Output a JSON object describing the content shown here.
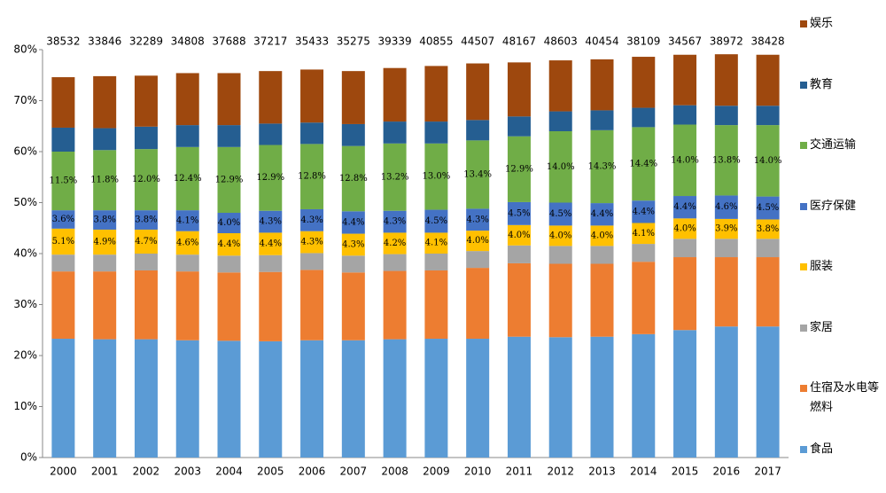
{
  "chart_data": {
    "type": "stacked_bar",
    "categories": [
      "2000",
      "2001",
      "2002",
      "2003",
      "2004",
      "2005",
      "2006",
      "2007",
      "2008",
      "2009",
      "2010",
      "2011",
      "2012",
      "2013",
      "2014",
      "2015",
      "2016",
      "2017"
    ],
    "annotations": [
      38532,
      33846,
      32289,
      34808,
      37688,
      37217,
      35433,
      35275,
      39339,
      40855,
      44507,
      48167,
      48603,
      40454,
      38109,
      34567,
      38972,
      38428
    ],
    "ylim": [
      0,
      80
    ],
    "yticks": [
      {
        "value": 0,
        "label": "0%"
      },
      {
        "value": 10,
        "label": "10%"
      },
      {
        "value": 20,
        "label": "20%"
      },
      {
        "value": 30,
        "label": "30%"
      },
      {
        "value": 40,
        "label": "40%"
      },
      {
        "value": 50,
        "label": "50%"
      },
      {
        "value": 60,
        "label": "60%"
      },
      {
        "value": 70,
        "label": "70%"
      },
      {
        "value": 80,
        "label": "80%"
      }
    ],
    "grid": false,
    "legend": "right",
    "series": [
      {
        "name": "食品",
        "color": "#5b9bd5",
        "values": [
          23.3,
          23.2,
          23.2,
          23.0,
          22.9,
          22.8,
          23.0,
          23.0,
          23.2,
          23.3,
          23.3,
          23.7,
          23.6,
          23.7,
          24.2,
          25.0,
          25.7,
          25.7
        ]
      },
      {
        "name": "住宿及水电等燃料",
        "color": "#ed7d31",
        "values": [
          13.2,
          13.3,
          13.5,
          13.5,
          13.4,
          13.6,
          13.8,
          13.3,
          13.4,
          13.4,
          13.9,
          14.4,
          14.4,
          14.3,
          14.2,
          14.3,
          13.6,
          13.6
        ]
      },
      {
        "name": "家居",
        "color": "#a5a5a5",
        "values": [
          3.3,
          3.3,
          3.3,
          3.3,
          3.3,
          3.3,
          3.3,
          3.3,
          3.3,
          3.3,
          3.3,
          3.5,
          3.5,
          3.5,
          3.5,
          3.6,
          3.6,
          3.6
        ]
      },
      {
        "name": "服装",
        "color": "#ffc000",
        "values": [
          5.1,
          4.9,
          4.7,
          4.6,
          4.4,
          4.4,
          4.3,
          4.3,
          4.2,
          4.1,
          4.0,
          4.0,
          4.0,
          4.0,
          4.1,
          4.0,
          3.9,
          3.8
        ],
        "value_labels": [
          "5.1%",
          "4.9%",
          "4.7%",
          "4.6%",
          "4.4%",
          "4.4%",
          "4.3%",
          "4.3%",
          "4.2%",
          "4.1%",
          "4.0%",
          "4.0%",
          "4.0%",
          "4.0%",
          "4.1%",
          "4.0%",
          "3.9%",
          "3.8%"
        ]
      },
      {
        "name": "医疗保健",
        "color": "#4472c4",
        "values": [
          3.6,
          3.8,
          3.8,
          4.1,
          4.0,
          4.3,
          4.3,
          4.4,
          4.3,
          4.5,
          4.3,
          4.5,
          4.5,
          4.4,
          4.4,
          4.4,
          4.6,
          4.5
        ],
        "value_labels": [
          "3.6%",
          "3.8%",
          "3.8%",
          "4.1%",
          "4.0%",
          "4.3%",
          "4.3%",
          "4.4%",
          "4.3%",
          "4.5%",
          "4.3%",
          "4.5%",
          "4.5%",
          "4.4%",
          "4.4%",
          "4.4%",
          "4.6%",
          "4.5%"
        ]
      },
      {
        "name": "交通运输",
        "color": "#70ad47",
        "values": [
          11.5,
          11.8,
          12.0,
          12.4,
          12.9,
          12.9,
          12.8,
          12.8,
          13.2,
          13.0,
          13.4,
          12.9,
          14.0,
          14.3,
          14.4,
          14.0,
          13.8,
          14.0
        ],
        "value_labels": [
          "11.5%",
          "11.8%",
          "12.0%",
          "12.4%",
          "12.9%",
          "12.9%",
          "12.8%",
          "12.8%",
          "13.2%",
          "13.0%",
          "13.4%",
          "12.9%",
          "14.0%",
          "14.3%",
          "14.4%",
          "14.0%",
          "13.8%",
          "14.0%"
        ]
      },
      {
        "name": "教育",
        "color": "#255e91",
        "values": [
          4.7,
          4.3,
          4.4,
          4.3,
          4.3,
          4.2,
          4.2,
          4.3,
          4.3,
          4.3,
          4.0,
          3.9,
          3.9,
          3.9,
          3.8,
          3.8,
          3.8,
          3.8
        ]
      },
      {
        "name": "娱乐",
        "color": "#9e480e",
        "values": [
          9.9,
          10.2,
          10.0,
          10.2,
          10.2,
          10.3,
          10.4,
          10.4,
          10.5,
          10.9,
          11.1,
          10.6,
          10.0,
          10.0,
          10.0,
          9.9,
          10.1,
          10.0
        ]
      }
    ]
  }
}
